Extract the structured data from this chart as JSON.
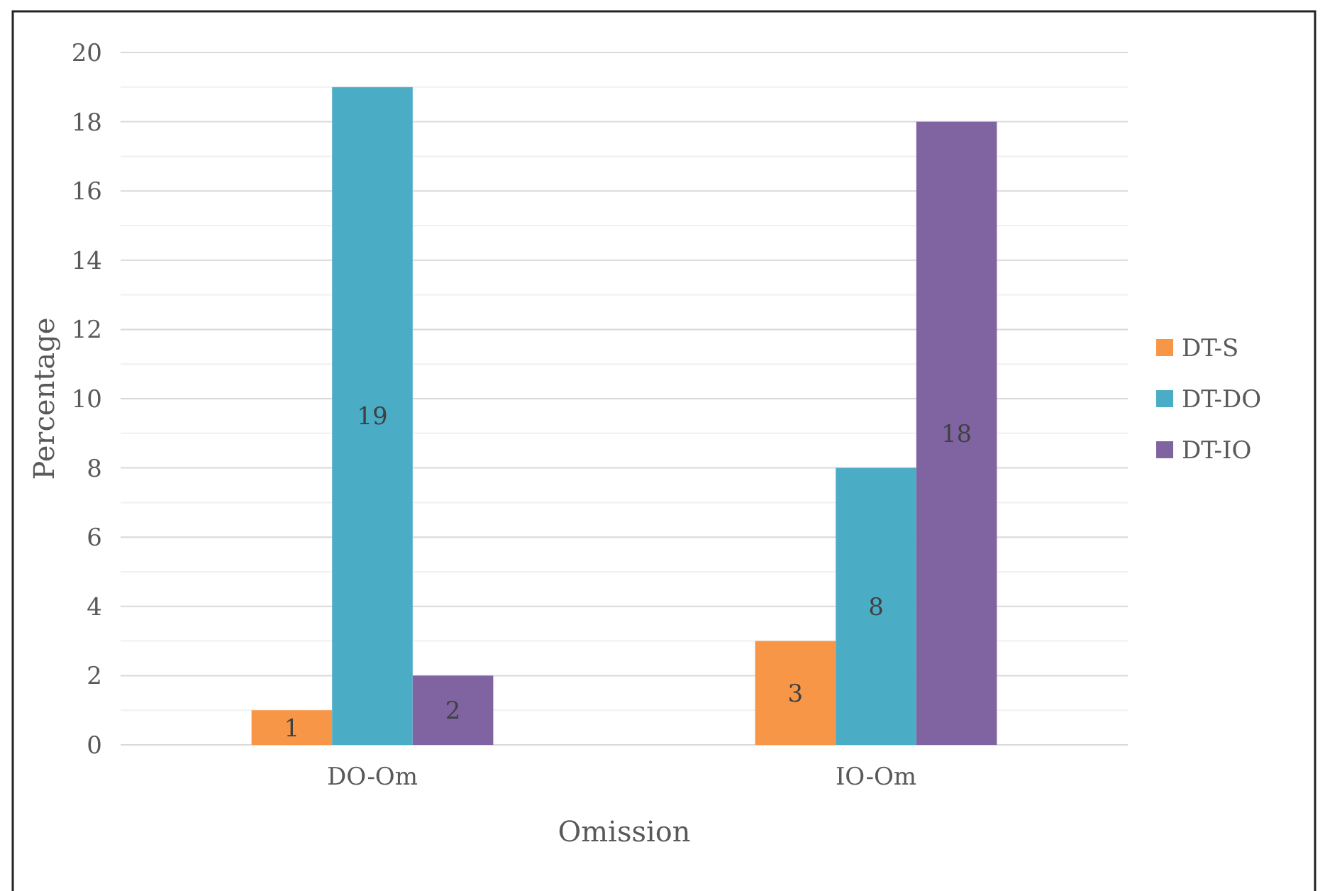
{
  "chart_data": {
    "type": "bar",
    "xlabel": "Omission",
    "ylabel": "Percentage",
    "categories": [
      "DO-Om",
      "IO-Om"
    ],
    "series": [
      {
        "name": "DT-S",
        "color": "#f79646",
        "values": [
          1,
          3
        ]
      },
      {
        "name": "DT-DO",
        "color": "#4bacc6",
        "values": [
          19,
          8
        ]
      },
      {
        "name": "DT-IO",
        "color": "#8064a2",
        "values": [
          2,
          18
        ]
      }
    ],
    "ylim": [
      0,
      20
    ],
    "yticks": [
      0,
      {
        "value": 1,
        "label": null
      },
      2,
      {
        "value": 3,
        "label": null
      },
      4,
      {
        "value": 5,
        "label": null
      },
      6,
      {
        "value": 7,
        "label": null
      },
      8,
      {
        "value": 9,
        "label": null
      },
      10,
      {
        "value": 11,
        "label": null
      },
      12,
      {
        "value": 13,
        "label": null
      },
      14,
      {
        "value": 15,
        "label": null
      },
      16,
      {
        "value": 17,
        "label": null
      },
      18,
      {
        "value": 19,
        "label": null
      },
      20
    ],
    "grid": "y",
    "legend": "right",
    "data_labels": true
  }
}
